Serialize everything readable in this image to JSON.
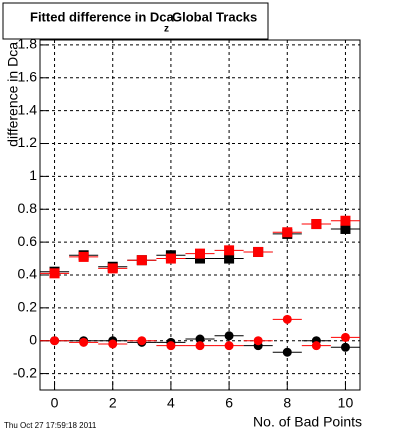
{
  "chart_data": {
    "type": "scatter",
    "title": "Fitted difference in Dca",
    "title_subscript": "z",
    "title_suffix": "Global Tracks",
    "x_label": "No. of Bad Points",
    "y_label": "difference in Dca",
    "timestamp": "Thu Oct 27 17:59:18 2011",
    "x": [
      0,
      1,
      2,
      3,
      4,
      5,
      6,
      7,
      8,
      9,
      10
    ],
    "xerr": 0.5,
    "series": [
      {
        "marker": "square",
        "color": "#000000",
        "values": [
          0.42,
          0.52,
          0.45,
          0.49,
          0.52,
          0.5,
          0.5,
          0.54,
          0.65,
          0.71,
          0.68
        ]
      },
      {
        "marker": "square",
        "color": "#ff0000",
        "values": [
          0.41,
          0.51,
          0.44,
          0.49,
          0.5,
          0.53,
          0.55,
          0.54,
          0.66,
          0.71,
          0.73
        ]
      },
      {
        "marker": "circle",
        "color": "#000000",
        "values": [
          0.0,
          0.0,
          0.0,
          -0.01,
          -0.01,
          0.01,
          0.03,
          -0.03,
          -0.07,
          0.0,
          -0.04
        ]
      },
      {
        "marker": "circle",
        "color": "#ff0000",
        "values": [
          0.0,
          -0.01,
          -0.02,
          0.0,
          -0.03,
          -0.03,
          -0.03,
          0.0,
          0.13,
          -0.03,
          0.02
        ]
      }
    ],
    "xlim": [
      -0.5,
      10.5
    ],
    "xticks": [
      0,
      2,
      4,
      6,
      8,
      10
    ],
    "ylim": [
      -0.3,
      1.83
    ],
    "yticks": [
      -0.2,
      0,
      0.2,
      0.4,
      0.6,
      0.8,
      1,
      1.2,
      1.4,
      1.6,
      1.8
    ],
    "grid": true
  }
}
